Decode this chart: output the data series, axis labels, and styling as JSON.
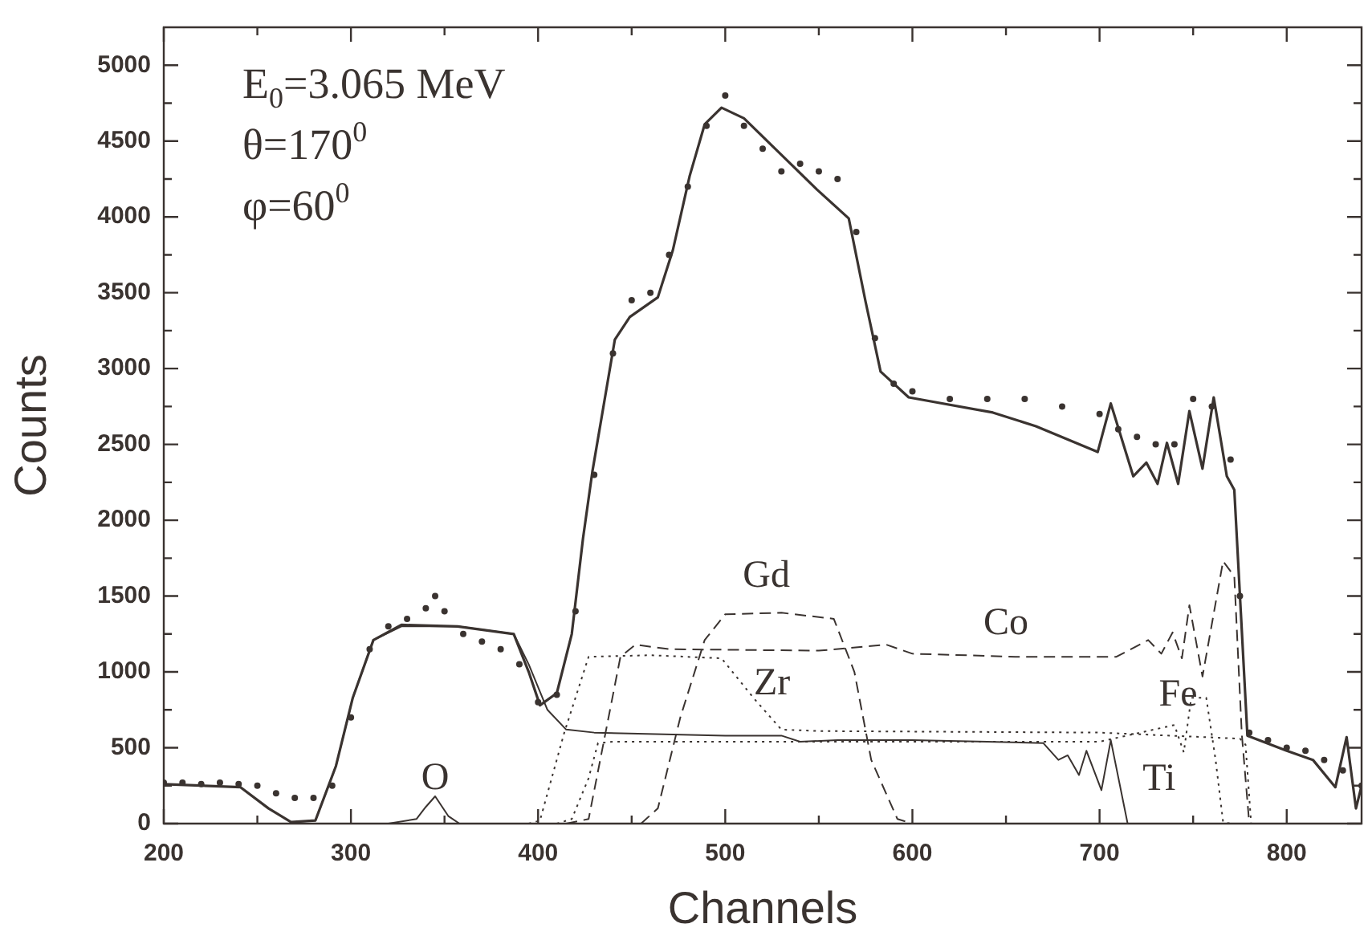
{
  "chart_data": {
    "type": "line",
    "xlabel": "Channels",
    "ylabel": "Counts",
    "annotations": [
      "E$_{0}$=3.065 MeV",
      "θ=170$^{0}$",
      "φ=60$^{0}$"
    ],
    "xlim": [
      200,
      840
    ],
    "ylim": [
      0,
      5250
    ],
    "xticks": [
      200,
      {
        "value": 250,
        "label": null
      },
      300,
      {
        "value": 350,
        "label": null
      },
      400,
      {
        "value": 450,
        "label": null
      },
      500,
      {
        "value": 550,
        "label": null
      },
      600,
      {
        "value": 650,
        "label": null
      },
      700,
      {
        "value": 750,
        "label": null
      },
      800
    ],
    "yticks": [
      0,
      {
        "value": 250,
        "label": null
      },
      500,
      {
        "value": 750,
        "label": null
      },
      1000,
      {
        "value": 1250,
        "label": null
      },
      1500,
      {
        "value": 1750,
        "label": null
      },
      2000,
      {
        "value": 2250,
        "label": null
      },
      2500,
      {
        "value": 2750,
        "label": null
      },
      3000,
      {
        "value": 3250,
        "label": null
      },
      3500,
      {
        "value": 3750,
        "label": null
      },
      4000,
      {
        "value": 4250,
        "label": null
      },
      4500,
      {
        "value": 4750,
        "label": null
      },
      5000
    ],
    "grid": false,
    "legend": false,
    "series": [
      {
        "type": "scatter",
        "marker": "circle",
        "color": "#3a3330",
        "x": [
          200,
          210,
          220,
          230,
          240,
          250,
          260,
          270,
          280,
          290,
          300,
          310,
          320,
          330,
          340,
          345,
          350,
          360,
          370,
          380,
          390,
          400,
          410,
          420,
          430,
          440,
          450,
          460,
          470,
          480,
          490,
          500,
          510,
          520,
          530,
          540,
          550,
          560,
          570,
          580,
          590,
          600,
          620,
          640,
          660,
          680,
          700,
          710,
          720,
          730,
          740,
          750,
          760,
          770,
          775,
          780,
          790,
          800,
          810,
          820,
          830,
          840
        ],
        "values": [
          270,
          270,
          260,
          270,
          260,
          250,
          200,
          170,
          170,
          250,
          700,
          1150,
          1300,
          1350,
          1420,
          1500,
          1400,
          1250,
          1200,
          1150,
          1050,
          800,
          850,
          1400,
          2300,
          3100,
          3450,
          3500,
          3750,
          4200,
          4600,
          4800,
          4600,
          4450,
          4300,
          4350,
          4300,
          4250,
          3900,
          3200,
          2900,
          2850,
          2800,
          2800,
          2800,
          2750,
          2700,
          2600,
          2550,
          2500,
          2500,
          2800,
          2750,
          2400,
          1500,
          600,
          550,
          500,
          480,
          420,
          350,
          250
        ]
      },
      {
        "line_style": "solid",
        "color": "#3a3330",
        "x": [
          200,
          241,
          256,
          268,
          281,
          292,
          301,
          312,
          327,
          357,
          387,
          395,
          401,
          410,
          418,
          424,
          429,
          441,
          449,
          464,
          472,
          481,
          489,
          498,
          510,
          549,
          566,
          575,
          583,
          598,
          643,
          666,
          699,
          706,
          718,
          725,
          731,
          736,
          742,
          748,
          755,
          761,
          768,
          772,
          779,
          800,
          814,
          826,
          832,
          837,
          840
        ],
        "values": [
          260,
          240,
          100,
          10,
          20,
          380,
          830,
          1210,
          1310,
          1300,
          1250,
          1000,
          780,
          860,
          1250,
          1880,
          2320,
          3190,
          3340,
          3470,
          3780,
          4270,
          4610,
          4720,
          4650,
          4180,
          3990,
          3440,
          2980,
          2810,
          2710,
          2620,
          2450,
          2770,
          2290,
          2380,
          2240,
          2510,
          2240,
          2720,
          2340,
          2810,
          2290,
          2200,
          580,
          480,
          420,
          240,
          570,
          100,
          250
        ]
      },
      {
        "type": "line",
        "name": "O",
        "line_style": "solid",
        "color": "#3a3330",
        "x": [
          320,
          335,
          340,
          345,
          352,
          358,
          370
        ],
        "values": [
          0,
          30,
          110,
          180,
          50,
          0,
          0
        ]
      },
      {
        "type": "line",
        "name": "Zr",
        "line_style": "dotted",
        "color": "#3a3330",
        "x": [
          395,
          401,
          414,
          427,
          460,
          498,
          515,
          530,
          550,
          700,
          775,
          778,
          781
        ],
        "values": [
          0,
          20,
          600,
          1100,
          1110,
          1090,
          830,
          620,
          610,
          600,
          560,
          520,
          0
        ]
      },
      {
        "type": "line",
        "name": "Gd",
        "line_style": "dashed",
        "color": "#3a3330",
        "x": [
          455,
          464,
          476,
          489,
          500,
          530,
          558,
          569,
          578,
          592,
          600
        ],
        "values": [
          0,
          100,
          700,
          1210,
          1380,
          1390,
          1350,
          1000,
          420,
          30,
          0
        ]
      },
      {
        "type": "line",
        "name": "Co",
        "line_style": "dashed",
        "color": "#3a3330",
        "x": [
          415,
          427,
          444,
          452,
          470,
          550,
          586,
          600,
          655,
          709,
          726,
          733,
          739,
          744,
          748,
          755,
          766,
          772,
          776,
          780
        ],
        "values": [
          0,
          30,
          1100,
          1180,
          1150,
          1140,
          1180,
          1120,
          1100,
          1100,
          1210,
          1120,
          1260,
          1090,
          1440,
          970,
          1730,
          1630,
          590,
          0
        ]
      },
      {
        "type": "line",
        "name": "Fe",
        "line_style": "dotted",
        "color": "#3a3330",
        "x": [
          410,
          418,
          427,
          432,
          440,
          500,
          600,
          700,
          740,
          745,
          749,
          757,
          762,
          766,
          770
        ],
        "values": [
          0,
          30,
          300,
          530,
          540,
          540,
          540,
          540,
          650,
          470,
          830,
          830,
          420,
          10,
          0
        ]
      },
      {
        "type": "line",
        "name": "Ti",
        "line_style": "solid",
        "color": "#3a3330",
        "x": [
          270,
          281,
          292,
          301,
          312,
          327,
          357,
          387,
          395,
          405,
          415,
          430,
          500,
          530,
          540,
          560,
          600,
          640,
          670,
          678,
          683,
          689,
          693,
          701,
          706,
          715
        ],
        "values": [
          10,
          20,
          380,
          830,
          1210,
          1300,
          1300,
          1250,
          1050,
          750,
          620,
          600,
          580,
          580,
          540,
          550,
          550,
          540,
          530,
          420,
          450,
          320,
          480,
          220,
          550,
          0
        ]
      }
    ]
  }
}
